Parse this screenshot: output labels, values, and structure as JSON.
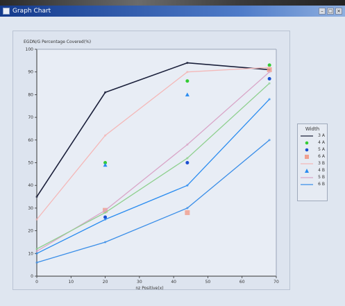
{
  "window": {
    "title": "Graph Chart"
  },
  "colors": {
    "axis": "#333333",
    "grid": "#c8d0dc"
  },
  "chart_data": {
    "type": "line",
    "title": "EGDN/G Percentage Covered(%)",
    "xlabel": "nz Positive(x)",
    "ylabel": "",
    "xlim": [
      0,
      70
    ],
    "ylim": [
      0,
      100
    ],
    "xticks": [
      0,
      10,
      20,
      30,
      40,
      50,
      60,
      70
    ],
    "yticks": [
      0,
      10,
      20,
      30,
      40,
      50,
      60,
      70,
      80,
      90,
      100
    ],
    "grid": false,
    "legend_title": "Width",
    "legend_position": "right",
    "series": [
      {
        "name": "3 A",
        "color": "#1a1f3a",
        "style": "line",
        "x": [
          0,
          20,
          44,
          68
        ],
        "y": [
          35,
          81,
          94,
          91
        ]
      },
      {
        "name": "4 A",
        "color": "#33cc33",
        "style": "marker",
        "marker": "circle",
        "x": [
          20,
          44,
          68
        ],
        "y": [
          50,
          86,
          93
        ]
      },
      {
        "name": "5 A",
        "color": "#1a4fd0",
        "style": "marker",
        "marker": "circle",
        "x": [
          20,
          44,
          68
        ],
        "y": [
          26,
          50,
          87
        ]
      },
      {
        "name": "6 A",
        "color": "#f0a090",
        "style": "marker",
        "marker": "square",
        "x": [
          20,
          44,
          68
        ],
        "y": [
          29,
          28,
          91
        ]
      },
      {
        "name": "3 B",
        "color": "#f4b8b8",
        "style": "line",
        "x": [
          0,
          20,
          44,
          68
        ],
        "y": [
          25,
          62,
          90,
          92
        ]
      },
      {
        "name": "4 B",
        "color": "#2a8cf0",
        "style": "marker",
        "marker": "triangle",
        "x": [
          20,
          44
        ],
        "y": [
          49,
          80
        ]
      },
      {
        "name": "5 B",
        "color": "#d9a6c8",
        "style": "line",
        "x": [
          0,
          20,
          44,
          68
        ],
        "y": [
          11,
          29,
          58,
          90
        ]
      },
      {
        "name": "6 B",
        "color": "#3a8ee8",
        "style": "line",
        "x": [
          0,
          20,
          44,
          68
        ],
        "y": [
          6,
          15,
          30,
          60
        ]
      },
      {
        "name": "",
        "color": "#8fd08f",
        "style": "line",
        "x": [
          0,
          20,
          44,
          68
        ],
        "y": [
          12,
          28,
          52,
          85
        ]
      },
      {
        "name": "",
        "color": "#2a8cf0",
        "style": "line",
        "x": [
          0,
          20,
          44,
          68
        ],
        "y": [
          10,
          25,
          40,
          78
        ]
      }
    ]
  }
}
